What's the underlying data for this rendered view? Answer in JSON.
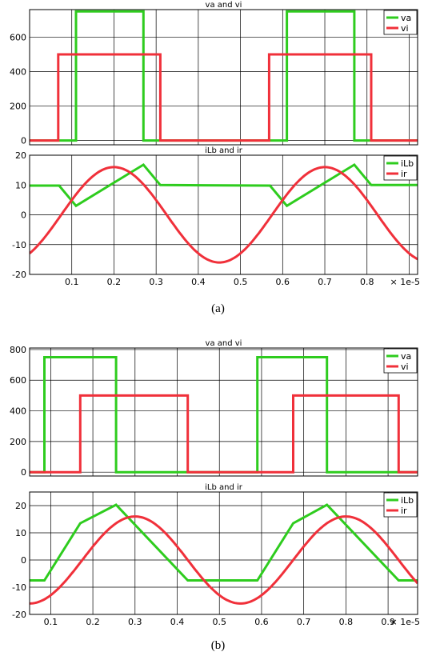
{
  "captions": {
    "a": "(a)",
    "b": "(b)"
  },
  "colors": {
    "green": "#2ecc1e",
    "red": "#f0303a",
    "grid": "#000000"
  },
  "chart_data": [
    {
      "id": "a-top",
      "type": "line",
      "title": "va and vi",
      "xlim": [
        0,
        0.92
      ],
      "ylim": [
        -25,
        760
      ],
      "yticks": [
        0,
        200,
        400,
        600
      ],
      "xgrid": [
        0.1,
        0.2,
        0.3,
        0.4,
        0.5,
        0.6,
        0.7,
        0.8,
        0.9
      ],
      "xticklabels": [],
      "legend": "top-right",
      "series": [
        {
          "name": "va",
          "color": "#2ecc1e",
          "x": [
            0,
            0.11,
            0.11,
            0.27,
            0.27,
            0.61,
            0.61,
            0.77,
            0.77,
            0.92
          ],
          "y": [
            0,
            0,
            750,
            750,
            0,
            0,
            750,
            750,
            0,
            0
          ]
        },
        {
          "name": "vi",
          "color": "#f0303a",
          "x": [
            0,
            0.068,
            0.068,
            0.31,
            0.31,
            0.568,
            0.568,
            0.81,
            0.81,
            0.92
          ],
          "y": [
            0,
            0,
            500,
            500,
            0,
            0,
            500,
            500,
            0,
            0
          ]
        }
      ]
    },
    {
      "id": "a-bottom",
      "type": "line",
      "title": "iLb and ir",
      "xlim": [
        0,
        0.92
      ],
      "ylim": [
        -20,
        20
      ],
      "yticks": [
        -20,
        -10,
        0,
        10,
        20
      ],
      "xgrid": [
        0.1,
        0.2,
        0.3,
        0.4,
        0.5,
        0.6,
        0.7,
        0.8,
        0.9
      ],
      "xticklabels": [
        "0.1",
        "0.2",
        "0.3",
        "0.4",
        "0.5",
        "0.6",
        "0.7",
        "0.8"
      ],
      "xunit": "× 1e-5",
      "legend": "top-right",
      "series": [
        {
          "name": "iLb",
          "color": "#2ecc1e",
          "x": [
            0,
            0.07,
            0.11,
            0.27,
            0.31,
            0.57,
            0.61,
            0.77,
            0.81,
            0.92
          ],
          "y": [
            9.8,
            9.8,
            3,
            16.8,
            10,
            9.8,
            3,
            16.8,
            10,
            10
          ]
        },
        {
          "name": "ir",
          "color": "#f0303a",
          "func": "sine",
          "amp": 16,
          "period": 0.5,
          "peak": 0.2
        }
      ]
    },
    {
      "id": "b-top",
      "type": "line",
      "title": "va and vi",
      "xlim": [
        0.05,
        0.97
      ],
      "ylim": [
        -25,
        810
      ],
      "yticks": [
        0,
        200,
        400,
        600,
        800
      ],
      "xgrid": [
        0.1,
        0.2,
        0.3,
        0.4,
        0.5,
        0.6,
        0.7,
        0.8,
        0.9
      ],
      "xticklabels": [],
      "legend": "top-right",
      "series": [
        {
          "name": "va",
          "color": "#2ecc1e",
          "x": [
            0.05,
            0.085,
            0.085,
            0.255,
            0.255,
            0.59,
            0.59,
            0.755,
            0.755,
            0.97
          ],
          "y": [
            0,
            0,
            750,
            750,
            0,
            0,
            750,
            750,
            0,
            0
          ]
        },
        {
          "name": "vi",
          "color": "#f0303a",
          "x": [
            0.05,
            0.17,
            0.17,
            0.425,
            0.425,
            0.675,
            0.675,
            0.925,
            0.925,
            0.97
          ],
          "y": [
            0,
            0,
            500,
            500,
            0,
            0,
            500,
            500,
            0,
            0
          ]
        }
      ]
    },
    {
      "id": "b-bottom",
      "type": "line",
      "title": "iLb and ir",
      "xlim": [
        0.05,
        0.97
      ],
      "ylim": [
        -20,
        25
      ],
      "yticks": [
        -20,
        -10,
        0,
        10,
        20
      ],
      "xgrid": [
        0.1,
        0.2,
        0.3,
        0.4,
        0.5,
        0.6,
        0.7,
        0.8,
        0.9
      ],
      "xticklabels": [
        "0.1",
        "0.2",
        "0.3",
        "0.4",
        "0.5",
        "0.6",
        "0.7",
        "0.8",
        "0.9"
      ],
      "xunit": "× 1e-5",
      "legend": "top-right",
      "series": [
        {
          "name": "iLb",
          "color": "#2ecc1e",
          "x": [
            0.05,
            0.085,
            0.17,
            0.255,
            0.425,
            0.59,
            0.675,
            0.755,
            0.925,
            0.97
          ],
          "y": [
            -7.5,
            -7.5,
            13.5,
            20.3,
            -7.5,
            -7.5,
            13.5,
            20.3,
            -7.5,
            -7.5
          ]
        },
        {
          "name": "ir",
          "color": "#f0303a",
          "func": "sine",
          "amp": 16,
          "period": 0.5,
          "peak": 0.3
        }
      ]
    }
  ]
}
